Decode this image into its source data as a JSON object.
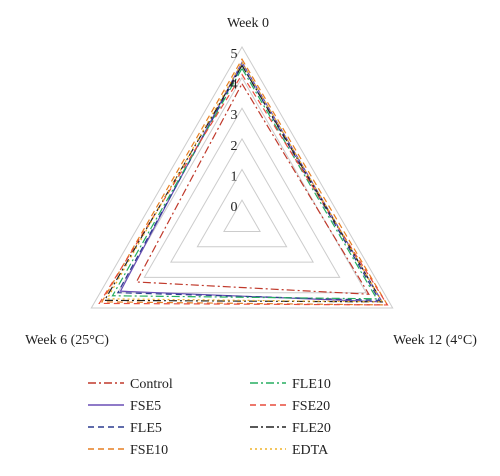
{
  "chart_data": {
    "type": "radar",
    "axes": [
      "Week 0",
      "Week 12 (4°C)",
      "Week 6 (25°C)"
    ],
    "r_ticks": [
      "0",
      "1",
      "2",
      "3",
      "4",
      "5"
    ],
    "r_range": [
      0,
      5
    ],
    "series": [
      {
        "name": "Control",
        "values": [
          3.8,
          4.1,
          3.3
        ],
        "color": "#c0392b",
        "dash": "dashdot"
      },
      {
        "name": "FSE5",
        "values": [
          4.5,
          4.6,
          3.9
        ],
        "color": "#6a4fb5",
        "dash": "solid"
      },
      {
        "name": "FLE5",
        "values": [
          4.4,
          4.5,
          4.0
        ],
        "color": "#2b3b8f",
        "dash": "dashed"
      },
      {
        "name": "FSE10",
        "values": [
          4.6,
          4.8,
          4.6
        ],
        "color": "#e67e22",
        "dash": "dashed"
      },
      {
        "name": "FLE10",
        "values": [
          4.3,
          4.4,
          4.2
        ],
        "color": "#27ae60",
        "dash": "dashdot"
      },
      {
        "name": "FSE20",
        "values": [
          4.1,
          4.8,
          4.7
        ],
        "color": "#e74c3c",
        "dash": "dashed"
      },
      {
        "name": "FLE20",
        "values": [
          4.4,
          4.6,
          4.5
        ],
        "color": "#222222",
        "dash": "dashdot"
      },
      {
        "name": "EDTA",
        "values": [
          4.5,
          4.6,
          4.4
        ],
        "color": "#f0b429",
        "dash": "dotted"
      }
    ],
    "grid": true,
    "legend": "bottom"
  }
}
